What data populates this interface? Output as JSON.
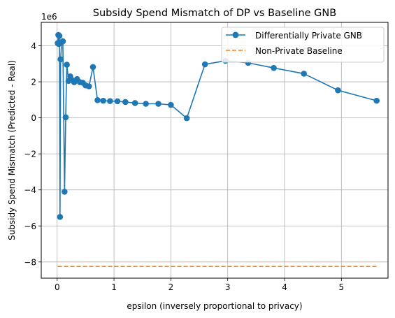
{
  "chart_data": {
    "type": "line",
    "title": "Subsidy Spend Mismatch of DP vs Baseline GNB",
    "xlabel": "epsilon (inversely proportional to privacy)",
    "ylabel": "Subsidy Spend Mismatch (Predicted - Real)",
    "y_offset_label": "1e6",
    "xlim": [
      -0.28,
      5.82
    ],
    "ylim": [
      -8.9,
      5.3
    ],
    "x_ticks": [
      0,
      1,
      2,
      3,
      4,
      5
    ],
    "x_tick_labels": [
      "0",
      "1",
      "2",
      "3",
      "4",
      "5"
    ],
    "y_ticks": [
      -8,
      -6,
      -4,
      -2,
      0,
      2,
      4
    ],
    "y_tick_labels": [
      "−8",
      "−6",
      "−4",
      "−2",
      "0",
      "2",
      "4"
    ],
    "grid": true,
    "legend_position": "top-right",
    "colors": {
      "dp": "#1f77b4",
      "baseline": "#ff7f0e"
    },
    "series": [
      {
        "name": "Differentially Private GNB",
        "style": "line-marker",
        "x": [
          0.01,
          0.02,
          0.03,
          0.04,
          0.05,
          0.06,
          0.08,
          0.1,
          0.13,
          0.15,
          0.17,
          0.2,
          0.23,
          0.26,
          0.3,
          0.35,
          0.4,
          0.45,
          0.5,
          0.56,
          0.63,
          0.71,
          0.81,
          0.93,
          1.06,
          1.2,
          1.37,
          1.56,
          1.78,
          2.0,
          2.28,
          2.6,
          2.96,
          3.36,
          3.81,
          4.34,
          4.94,
          5.62
        ],
        "y": [
          4.15,
          4.6,
          4.1,
          4.55,
          -5.5,
          3.25,
          4.2,
          4.25,
          -4.1,
          0.03,
          2.95,
          2.05,
          2.3,
          2.1,
          1.98,
          2.15,
          1.98,
          1.95,
          1.8,
          1.75,
          2.82,
          0.98,
          0.95,
          0.93,
          0.92,
          0.88,
          0.82,
          0.78,
          0.78,
          0.72,
          -0.02,
          2.97,
          3.17,
          3.05,
          2.77,
          2.45,
          1.53,
          0.95
        ]
      },
      {
        "name": "Non-Private Baseline",
        "style": "dashed",
        "x": [
          0.01,
          5.62
        ],
        "y": [
          -8.25,
          -8.25
        ]
      }
    ]
  }
}
